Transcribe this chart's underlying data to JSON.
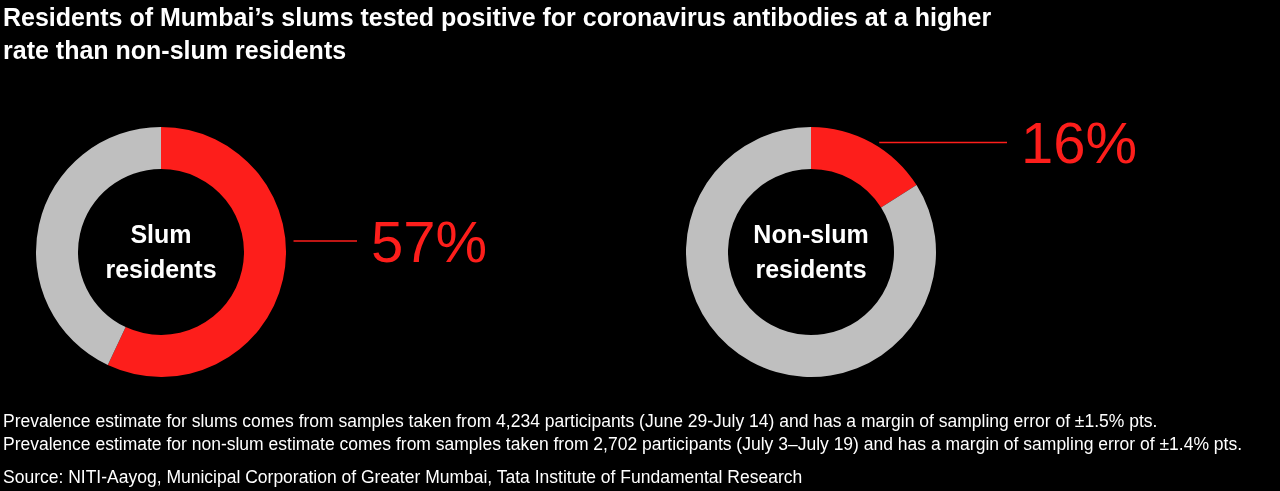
{
  "chart_data": [
    {
      "type": "donut",
      "title": "Residents of Mumbai’s slums tested positive for coronavirus antibodies at a higher rate than non-slum residents",
      "categories": [
        null,
        null
      ],
      "values": [
        57,
        43
      ],
      "colors": [
        "#fd1e1b",
        "#bfbfbf"
      ],
      "value_labels": [
        "57%",
        null
      ],
      "annotations": [
        "Slum residents",
        "Prevalence estimate for slums comes from samples taken from 4,234 participants (June 29-July 14) and has a margin of sampling error of ±1.5% pts."
      ]
    },
    {
      "type": "donut",
      "categories": [
        null,
        null
      ],
      "values": [
        16,
        84
      ],
      "colors": [
        "#fd1e1b",
        "#bfbfbf"
      ],
      "value_labels": [
        "16%",
        null
      ],
      "annotations": [
        "Non-slum residents",
        "Prevalence estimate for non-slum estimate comes from samples taken from 2,702 participants (July 3–July 19) and has a margin of sampling error of ±1.4% pts.",
        "Source: NITI-Aayog, Municipal Corporation of Greater Mumbai, Tata Institute of Fundamental Research"
      ]
    }
  ]
}
